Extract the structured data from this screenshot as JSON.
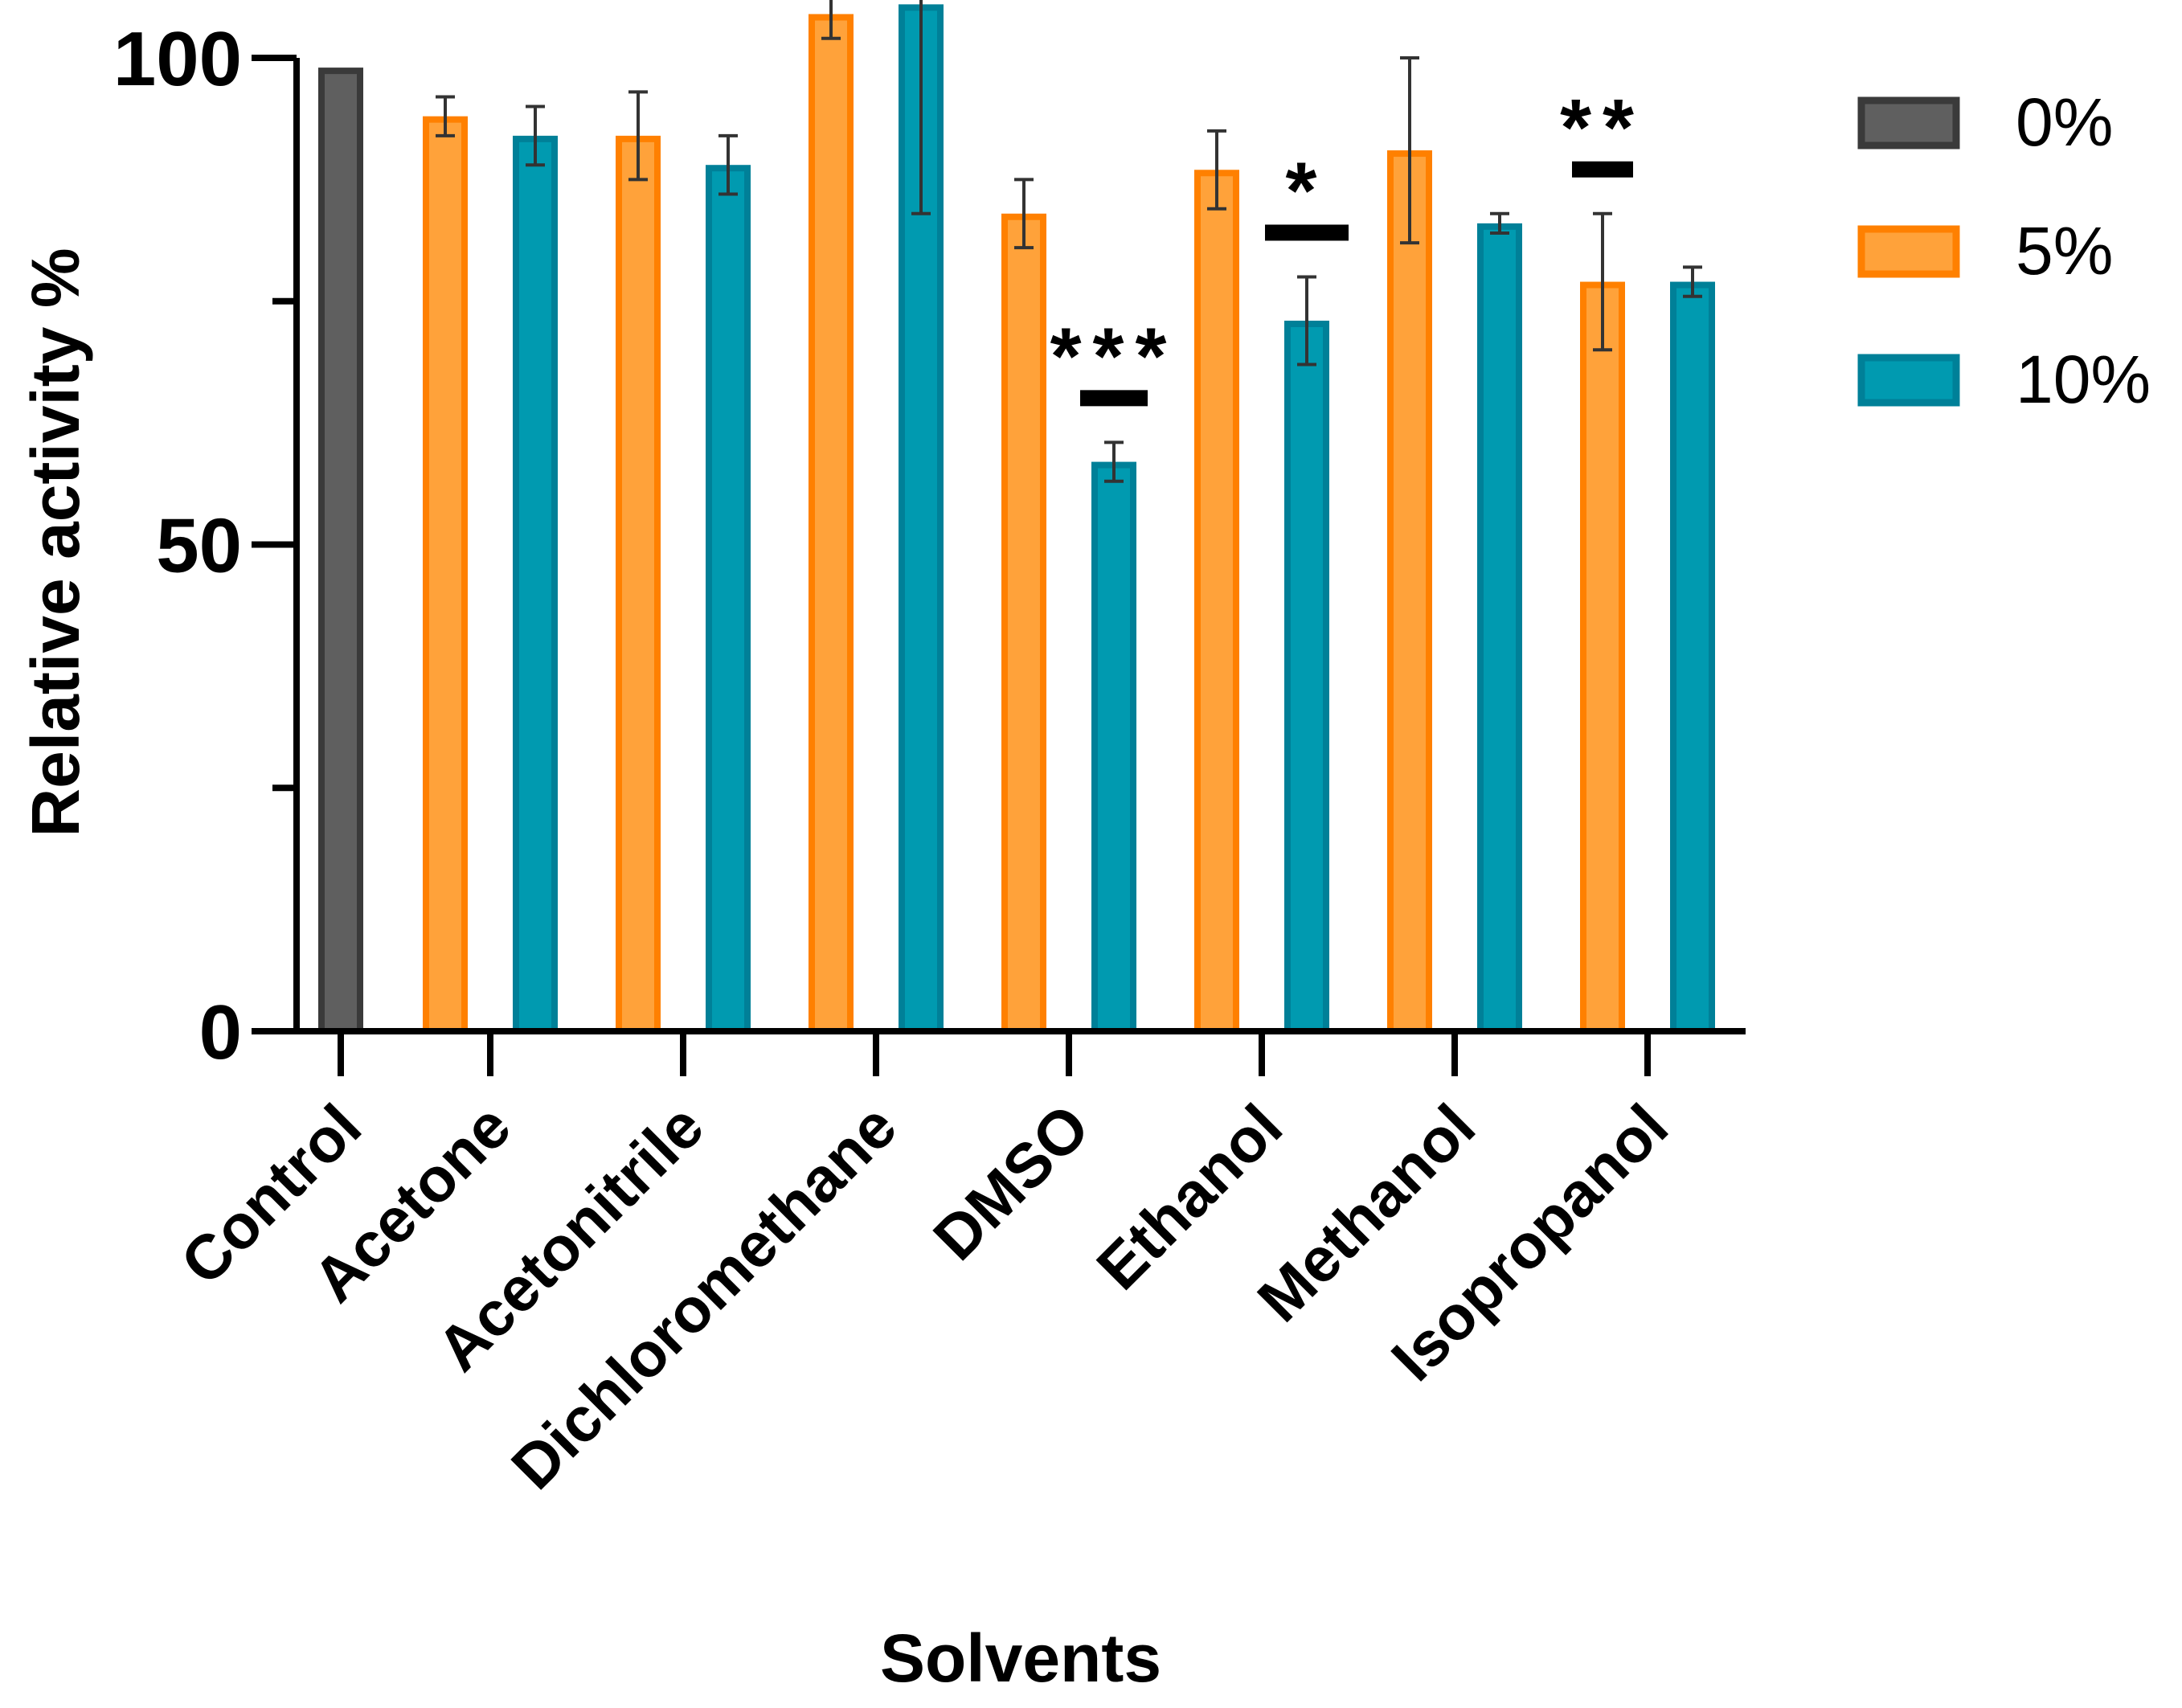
{
  "chart_data": {
    "type": "bar",
    "xlabel": "Solvents",
    "ylabel": "Relative activity %",
    "ylim": [
      0,
      100
    ],
    "yticks": [
      0,
      50,
      100
    ],
    "grid": false,
    "legend_position": "top-right",
    "categories": [
      "Control",
      "Acetone",
      "Acetonitrile",
      "Dichloromethane",
      "DMSO",
      "Ethanol",
      "Methanol",
      "Isopropanol"
    ],
    "series": [
      {
        "name": "0%",
        "color": "#5f5f5f",
        "stroke": "#3a3a3a",
        "values": [
          99,
          null,
          null,
          null,
          null,
          null,
          null,
          null
        ],
        "errors": [
          0,
          null,
          null,
          null,
          null,
          null,
          null,
          null
        ]
      },
      {
        "name": "5%",
        "color": "#ffa23a",
        "stroke": "#ff8000",
        "values": [
          null,
          94,
          92,
          104.5,
          84,
          88.5,
          90.5,
          77
        ],
        "errors": [
          null,
          2,
          4.5,
          2.5,
          3.5,
          4,
          9.5,
          7
        ]
      },
      {
        "name": "10%",
        "color": "#009ab0",
        "stroke": "#008098",
        "values": [
          null,
          92,
          89,
          105.5,
          58.5,
          73,
          83,
          77
        ],
        "errors": [
          null,
          3,
          3,
          21.5,
          2,
          4.5,
          1,
          1.5
        ]
      }
    ],
    "annotations": [
      {
        "category": "DMSO",
        "series": "10%",
        "text": "***"
      },
      {
        "category": "Ethanol",
        "series": "10%",
        "text": "*"
      },
      {
        "category": "Isopropanol",
        "series": "5%",
        "text": "**"
      }
    ]
  }
}
